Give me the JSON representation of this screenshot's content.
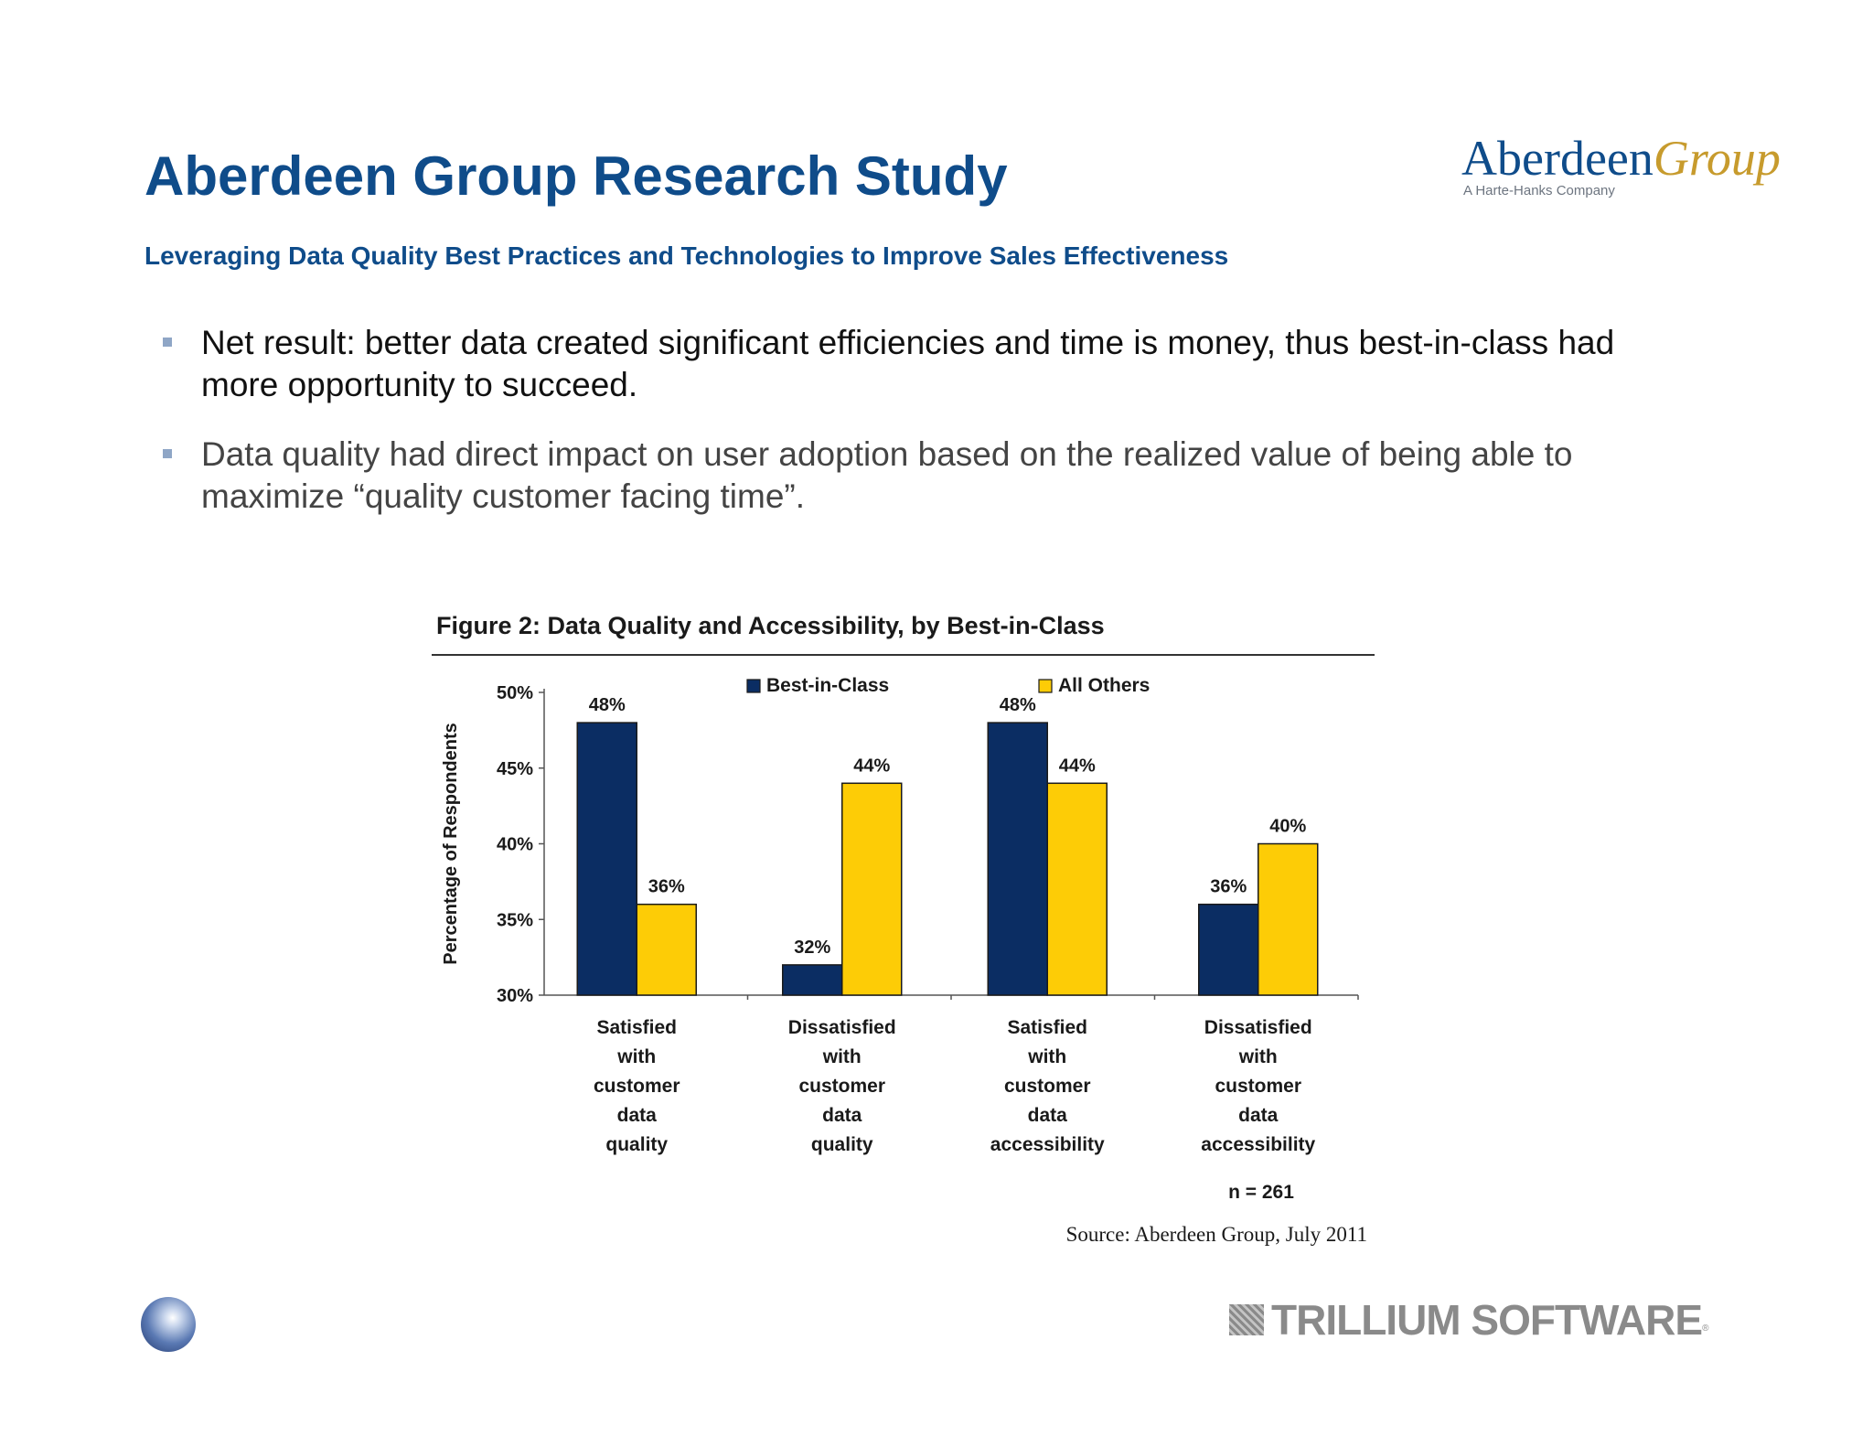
{
  "slide": {
    "title": "Aberdeen Group Research Study",
    "subtitle": "Leveraging Data Quality Best Practices and Technologies to Improve Sales Effectiveness",
    "bullets": [
      "Net result: better data created significant efficiencies and time is money, thus best-in-class had more opportunity to succeed.",
      "Data quality had direct impact on user adoption based on the realized value of being able to maximize “quality customer facing time”."
    ],
    "logo": {
      "word1": "Aberdeen",
      "word2": "Group",
      "tagline": "A Harte-Hanks Company"
    },
    "footer": {
      "brand": "TRILLIUM SOFTWARE",
      "reg_mark": "®"
    }
  },
  "chart_data": {
    "type": "bar",
    "title": "Figure 2: Data Quality and Accessibility, by Best-in-Class",
    "ylabel": "Percentage of Respondents",
    "xlabel": "",
    "ylim": [
      30,
      50
    ],
    "yticks": [
      "30%",
      "35%",
      "40%",
      "45%",
      "50%"
    ],
    "ytick_values": [
      30,
      35,
      40,
      45,
      50
    ],
    "categories": [
      [
        "Satisfied",
        "with",
        "customer",
        "data",
        "quality"
      ],
      [
        "Dissatisfied",
        "with",
        "customer",
        "data",
        "quality"
      ],
      [
        "Satisfied",
        "with",
        "customer",
        "data",
        "accessibility"
      ],
      [
        "Dissatisfied",
        "with",
        "customer",
        "data",
        "accessibility"
      ]
    ],
    "series": [
      {
        "name": "Best-in-Class",
        "color": "#0b2d63",
        "values": [
          48,
          32,
          48,
          36
        ],
        "labels": [
          "48%",
          "32%",
          "48%",
          "36%"
        ]
      },
      {
        "name": "All Others",
        "color": "#fdcc06",
        "values": [
          36,
          44,
          44,
          40
        ],
        "labels": [
          "36%",
          "44%",
          "44%",
          "40%"
        ]
      }
    ],
    "legend_position": "top",
    "grid": false,
    "note": "n = 261",
    "source": "Source: Aberdeen Group, July 2011"
  }
}
